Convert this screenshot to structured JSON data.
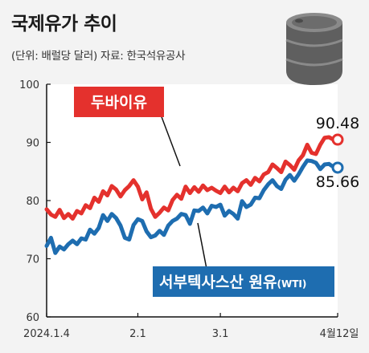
{
  "header": {
    "title": "국제유가 추이",
    "subtitle": "(단위: 배럴당 달러) 자료: 한국석유공사"
  },
  "colors": {
    "dubai": "#e4312d",
    "wti": "#1e6db0",
    "plot_bg": "#ffffff",
    "page_bg": "#f3f3f3"
  },
  "icon": "oil-barrel-icon",
  "chart_data": {
    "type": "line",
    "title": "국제유가 추이",
    "unit": "배럴당 달러",
    "source": "한국석유공사",
    "ylim": [
      60,
      100
    ],
    "yticks": [
      60,
      70,
      80,
      90,
      100
    ],
    "x_tick_labels": [
      {
        "x": 0,
        "label": "2024.1.4"
      },
      {
        "x": 21,
        "label": "2.1"
      },
      {
        "x": 40,
        "label": "3.1"
      },
      {
        "x": 67,
        "label": "4월12일"
      }
    ],
    "grid": false,
    "series": [
      {
        "name": "두바이유",
        "color": "#e4312d",
        "end_label": "90.48",
        "values": [
          78.5,
          77.6,
          77.2,
          78.4,
          77.0,
          77.7,
          76.9,
          78.2,
          77.8,
          79.2,
          78.7,
          80.5,
          79.8,
          81.6,
          80.9,
          82.5,
          81.9,
          80.7,
          81.8,
          82.5,
          83.5,
          82.4,
          80.2,
          81.4,
          78.6,
          77.2,
          77.9,
          78.8,
          78.3,
          80.1,
          81.0,
          80.3,
          82.4,
          81.3,
          82.3,
          81.5,
          82.6,
          81.8,
          82.2,
          81.7,
          81.3,
          82.4,
          81.4,
          82.2,
          81.6,
          83.0,
          83.5,
          82.7,
          83.9,
          83.3,
          84.5,
          84.9,
          86.2,
          85.6,
          84.9,
          86.7,
          86.1,
          85.3,
          86.9,
          87.8,
          89.6,
          88.2,
          88.0,
          89.6,
          90.8,
          90.9,
          90.5,
          90.48
        ]
      },
      {
        "name": "서부텍사스산 원유(WTI)",
        "color": "#1e6db0",
        "end_label": "85.66",
        "values": [
          72.2,
          73.6,
          71.0,
          72.1,
          71.6,
          72.5,
          73.1,
          72.5,
          73.5,
          73.3,
          75.0,
          74.3,
          75.3,
          77.5,
          76.5,
          77.7,
          77.0,
          75.7,
          73.6,
          73.3,
          75.8,
          76.8,
          76.5,
          74.7,
          73.7,
          74.0,
          74.8,
          74.1,
          75.7,
          76.5,
          76.9,
          77.7,
          77.5,
          76.0,
          78.3,
          78.2,
          78.8,
          77.8,
          79.1,
          78.9,
          79.3,
          77.4,
          78.2,
          77.7,
          76.9,
          79.9,
          78.9,
          79.3,
          80.5,
          80.4,
          81.8,
          82.8,
          83.5,
          82.5,
          82.0,
          83.6,
          84.4,
          83.4,
          84.5,
          85.8,
          86.9,
          86.8,
          86.5,
          85.4,
          86.2,
          86.3,
          85.8,
          85.66
        ]
      }
    ],
    "annotations": [
      "두바이유",
      "서부텍사스산 원유(WTI)"
    ]
  }
}
